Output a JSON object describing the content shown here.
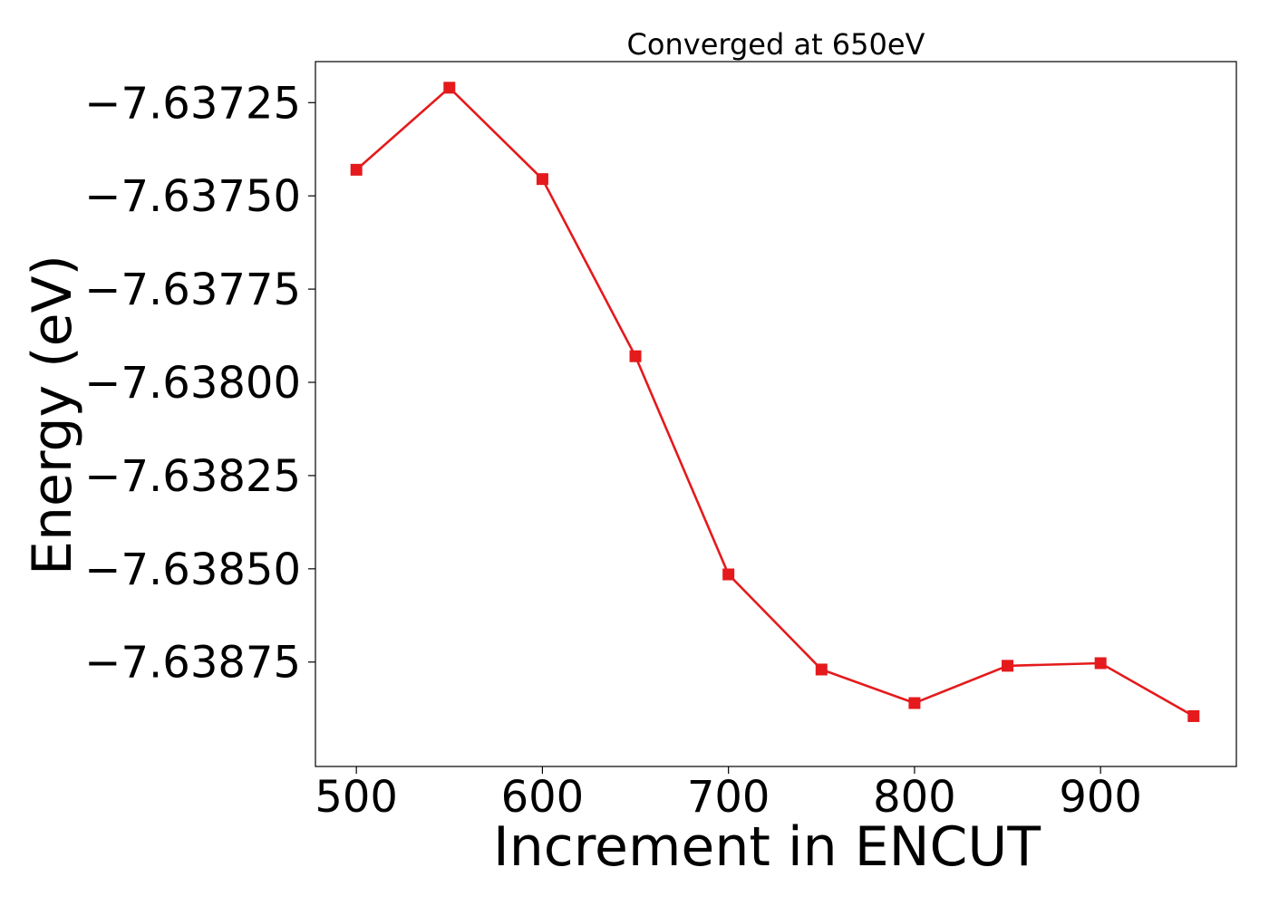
{
  "chart_data": {
    "type": "line",
    "title": "Converged at 650eV",
    "xlabel": "Increment in ENCUT",
    "ylabel": "Energy (eV)",
    "xlim": [
      478,
      973
    ],
    "ylim": [
      -7.63903,
      -7.63714
    ],
    "xticks": [
      500,
      600,
      700,
      800,
      900
    ],
    "xtick_labels": [
      "500",
      "600",
      "700",
      "800",
      "900"
    ],
    "yticks": [
      -7.63725,
      -7.6375,
      -7.63775,
      -7.638,
      -7.63825,
      -7.6385,
      -7.63875
    ],
    "ytick_labels": [
      "−7.63725",
      "−7.63750",
      "−7.63775",
      "−7.63800",
      "−7.63825",
      "−7.63850",
      "−7.63875"
    ],
    "grid": false,
    "series": [
      {
        "color": "#e41a1c",
        "marker": "square",
        "x": [
          500,
          550,
          600,
          650,
          700,
          750,
          800,
          850,
          900,
          950
        ],
        "y": [
          -7.63743,
          -7.63721,
          -7.637455,
          -7.63793,
          -7.638515,
          -7.63877,
          -7.63886,
          -7.63876,
          -7.638753,
          -7.638895
        ]
      }
    ]
  }
}
